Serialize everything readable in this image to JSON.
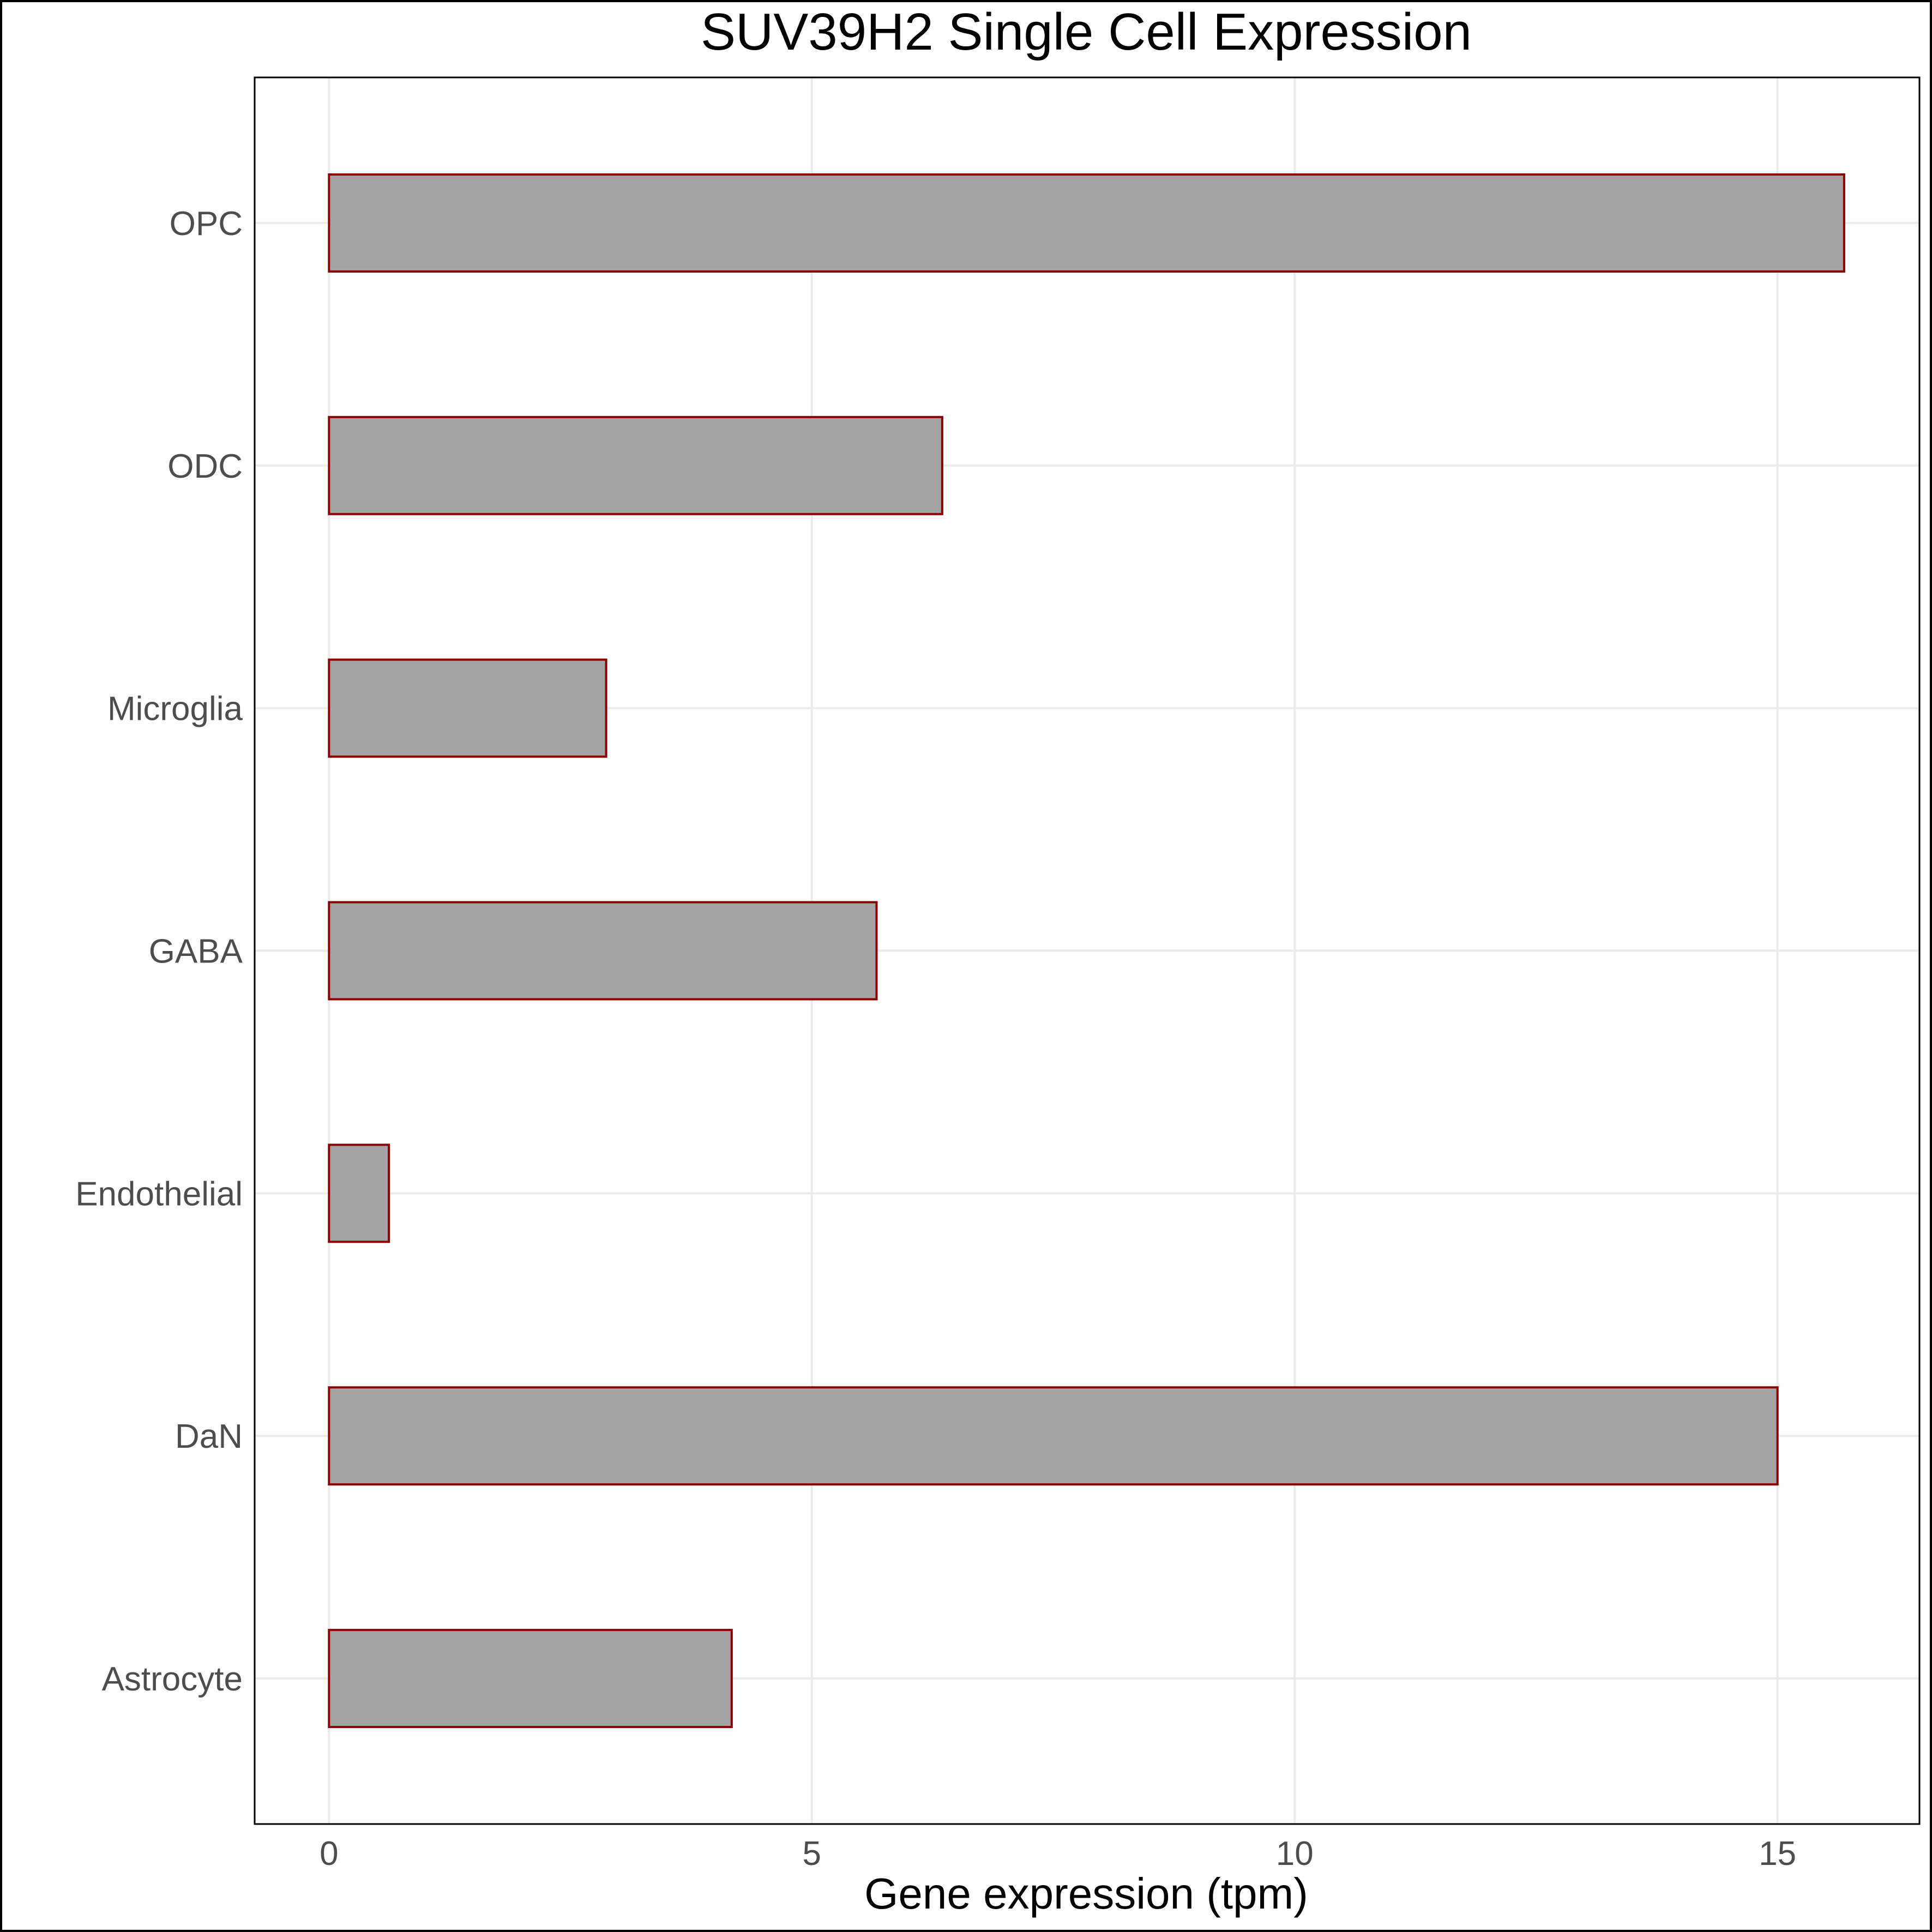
{
  "chart_data": {
    "type": "bar",
    "orientation": "horizontal",
    "title": "SUV39H2 Single Cell Expression",
    "xlabel": "Gene expression (tpm)",
    "ylabel": "",
    "categories": [
      "Astrocyte",
      "DaN",
      "Endothelial",
      "GABA",
      "Microglia",
      "ODC",
      "OPC"
    ],
    "values": [
      4.17,
      15.0,
      0.62,
      5.67,
      2.87,
      6.35,
      15.69
    ],
    "xlim": [
      -0.77,
      16.47
    ],
    "xticks": [
      0,
      5,
      10,
      15
    ],
    "grid": true,
    "legend": "none",
    "colors": {
      "bar_fill": "#a3a3a3",
      "bar_outline": "#8b0000"
    }
  }
}
